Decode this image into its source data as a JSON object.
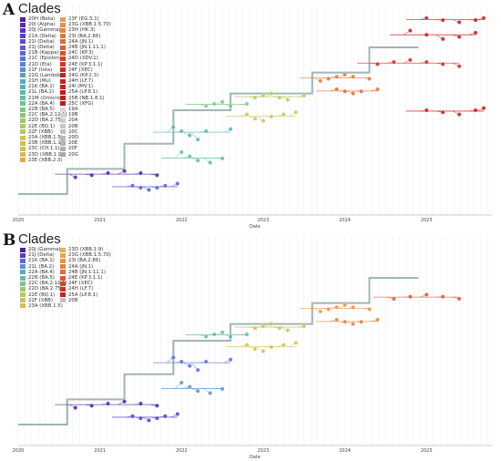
{
  "chart_data": [
    {
      "type": "scatter",
      "panel_letter": "A",
      "legend_title": "Clades",
      "xlabel": "Date",
      "ylabel": "",
      "x_ticks": [
        "2020",
        "2021",
        "2022",
        "2023",
        "2024",
        "2025"
      ],
      "xlim": [
        2020.0,
        2025.8
      ],
      "grid": true,
      "legend_placement": "top-left",
      "legend_columns": 2,
      "legend": [
        {
          "name": "20H (Beta)",
          "color": "#4b1fa3"
        },
        {
          "name": "20I (Alpha)",
          "color": "#5427b3"
        },
        {
          "name": "20J (Gamma)",
          "color": "#5a30c0"
        },
        {
          "name": "21A (Delta)",
          "color": "#5e3bcb"
        },
        {
          "name": "21I (Delta)",
          "color": "#5f48d3"
        },
        {
          "name": "21J (Delta)",
          "color": "#5d58d8"
        },
        {
          "name": "21B (Kappa)",
          "color": "#5968db"
        },
        {
          "name": "21C (Epsilon)",
          "color": "#5777dc"
        },
        {
          "name": "21D (Eta)",
          "color": "#5586da"
        },
        {
          "name": "21F (Iota)",
          "color": "#5393d5"
        },
        {
          "name": "21G (Lambda)",
          "color": "#539fce"
        },
        {
          "name": "21H (Mu)",
          "color": "#55a9c4"
        },
        {
          "name": "21K (BA.1)",
          "color": "#59b2b8"
        },
        {
          "name": "21L (BA.2)",
          "color": "#5fb9ab"
        },
        {
          "name": "21M (Omicron)",
          "color": "#67be9e"
        },
        {
          "name": "22A (BA.4)",
          "color": "#72c290"
        },
        {
          "name": "22B (BA.5)",
          "color": "#7fc583"
        },
        {
          "name": "22C (BA.2.12.1)",
          "color": "#8cc777"
        },
        {
          "name": "22D (BA.2.75)",
          "color": "#9bc86c"
        },
        {
          "name": "22E (BQ.1)",
          "color": "#aac863"
        },
        {
          "name": "22F (XBB)",
          "color": "#b8c75c"
        },
        {
          "name": "23A (XBB.1.5)",
          "color": "#c5c557"
        },
        {
          "name": "23B (XBB.1.16)",
          "color": "#d0c154"
        },
        {
          "name": "23C (CH.1.1)",
          "color": "#dabc51"
        },
        {
          "name": "23D (XBB.1.9)",
          "color": "#e1b54f"
        },
        {
          "name": "23E (XBB.2.3)",
          "color": "#e5ab4c"
        },
        {
          "name": "23F (EG.5.1)",
          "color": "#e79f48"
        },
        {
          "name": "23G (XBB.1.5.70)",
          "color": "#e79244"
        },
        {
          "name": "23H (HK.3)",
          "color": "#e6843f"
        },
        {
          "name": "23I (BA.2.86)",
          "color": "#e4763a"
        },
        {
          "name": "24A (JN.1)",
          "color": "#e26835"
        },
        {
          "name": "24B (JN.1.11.1)",
          "color": "#df5a30"
        },
        {
          "name": "24C (KP.3)",
          "color": "#dc4c2b"
        },
        {
          "name": "24D (XDV.1)",
          "color": "#d93f28"
        },
        {
          "name": "24E (KP.3.1.1)",
          "color": "#d63325"
        },
        {
          "name": "24F (XEC)",
          "color": "#d42822"
        },
        {
          "name": "24G (KP.2.3)",
          "color": "#d22020"
        },
        {
          "name": "24H (LF.7)",
          "color": "#d01c1e"
        },
        {
          "name": "24I (MV.1)",
          "color": "#cf1a1c"
        },
        {
          "name": "25A (LP.8.1)",
          "color": "#cd1819"
        },
        {
          "name": "25B (NB.1.8.1)",
          "color": "#cc1717"
        },
        {
          "name": "25C (XFG)",
          "color": "#ca1615"
        },
        {
          "name": "19A",
          "color": "#d8d8d8"
        },
        {
          "name": "19B",
          "color": "#d2d2d2"
        },
        {
          "name": "20A",
          "color": "#cccccc"
        },
        {
          "name": "20B",
          "color": "#c6c6c6"
        },
        {
          "name": "20C",
          "color": "#c0c0c0"
        },
        {
          "name": "20D",
          "color": "#bababa"
        },
        {
          "name": "20E",
          "color": "#b4b4b4"
        },
        {
          "name": "20F",
          "color": "#aeaeae"
        },
        {
          "name": "20G",
          "color": "#a8a8a8"
        }
      ],
      "series": [
        {
          "name": "20H (Beta)",
          "x": [
            2020.7,
            2020.9,
            2021.1,
            2021.3,
            2021.5,
            2021.7
          ],
          "y": [
            0.82,
            0.81,
            0.8,
            0.79,
            0.8,
            0.81
          ]
        },
        {
          "name": "21J (Delta)",
          "x": [
            2021.4,
            2021.5,
            2021.6,
            2021.7,
            2021.8,
            2021.95
          ],
          "y": [
            0.86,
            0.87,
            0.88,
            0.87,
            0.86,
            0.85
          ]
        },
        {
          "name": "21K (BA.1)",
          "x": [
            2021.9,
            2022.0,
            2022.1,
            2022.2,
            2022.3,
            2022.6
          ],
          "y": [
            0.58,
            0.6,
            0.62,
            0.64,
            0.6,
            0.59
          ]
        },
        {
          "name": "21L (BA.2)",
          "x": [
            2022.0,
            2022.1,
            2022.2,
            2022.35,
            2022.5
          ],
          "y": [
            0.7,
            0.72,
            0.74,
            0.75,
            0.73
          ]
        },
        {
          "name": "22B (BA.5)",
          "x": [
            2022.3,
            2022.4,
            2022.5,
            2022.6,
            2022.8
          ],
          "y": [
            0.48,
            0.47,
            0.46,
            0.48,
            0.47
          ]
        },
        {
          "name": "22F (XBB)",
          "x": [
            2022.9,
            2023.0,
            2023.1,
            2023.2,
            2023.3,
            2023.5
          ],
          "y": [
            0.44,
            0.43,
            0.42,
            0.44,
            0.45,
            0.43
          ]
        },
        {
          "name": "23A (XBB.1.5)",
          "x": [
            2022.8,
            2022.9,
            2023.0,
            2023.1,
            2023.25,
            2023.4
          ],
          "y": [
            0.52,
            0.54,
            0.55,
            0.53,
            0.52,
            0.51
          ]
        },
        {
          "name": "23I (BA.2.86)",
          "x": [
            2023.7,
            2023.8,
            2023.9,
            2024.0,
            2024.1,
            2024.3
          ],
          "y": [
            0.36,
            0.35,
            0.34,
            0.33,
            0.34,
            0.35
          ]
        },
        {
          "name": "24A (JN.1)",
          "x": [
            2023.9,
            2024.0,
            2024.1,
            2024.2,
            2024.4
          ],
          "y": [
            0.4,
            0.41,
            0.42,
            0.41,
            0.4
          ]
        },
        {
          "name": "24F (XEC)",
          "x": [
            2024.4,
            2024.6,
            2024.8,
            2025.0,
            2025.2,
            2025.4
          ],
          "y": [
            0.28,
            0.27,
            0.26,
            0.27,
            0.28,
            0.29
          ]
        },
        {
          "name": "25A (LP.8.1)",
          "x": [
            2024.8,
            2025.0,
            2025.2,
            2025.4,
            2025.6
          ],
          "y": [
            0.12,
            0.14,
            0.16,
            0.15,
            0.13
          ]
        },
        {
          "name": "25B (NB.1.8.1)",
          "x": [
            2025.0,
            2025.2,
            2025.4,
            2025.6,
            2025.7
          ],
          "y": [
            0.06,
            0.07,
            0.08,
            0.07,
            0.06
          ]
        },
        {
          "name": "25C (XFG)",
          "x": [
            2025.0,
            2025.2,
            2025.4,
            2025.6,
            2025.7
          ],
          "y": [
            0.5,
            0.51,
            0.52,
            0.5,
            0.49
          ]
        }
      ]
    },
    {
      "type": "scatter",
      "panel_letter": "B",
      "legend_title": "Clades",
      "xlabel": "Date",
      "ylabel": "",
      "x_ticks": [
        "2020",
        "2021",
        "2022",
        "2023",
        "2024",
        "2025"
      ],
      "xlim": [
        2020.0,
        2025.8
      ],
      "grid": true,
      "legend_placement": "top-left",
      "legend_columns": 2,
      "legend": [
        {
          "name": "20J (Gamma)",
          "color": "#4b1fa3"
        },
        {
          "name": "21J (Delta)",
          "color": "#5a3ac8"
        },
        {
          "name": "21K (BA.1)",
          "color": "#5769d8"
        },
        {
          "name": "21L (BA.2)",
          "color": "#5590d4"
        },
        {
          "name": "22A (BA.4)",
          "color": "#59abc3"
        },
        {
          "name": "22B (BA.5)",
          "color": "#66bca5"
        },
        {
          "name": "22C (BA.2.12.1)",
          "color": "#7fc583"
        },
        {
          "name": "22D (BA.2.75)",
          "color": "#9bc86c"
        },
        {
          "name": "22E (BQ.1)",
          "color": "#b0c85e"
        },
        {
          "name": "22F (XBB)",
          "color": "#c3c656"
        },
        {
          "name": "23A (XBB.1.5)",
          "color": "#d3c053"
        },
        {
          "name": "23D (XBB.1.9)",
          "color": "#e0b54f"
        },
        {
          "name": "23G (XBB.1.5.70)",
          "color": "#e6a64a"
        },
        {
          "name": "23I (BA.2.86)",
          "color": "#e79444"
        },
        {
          "name": "24A (JN.1)",
          "color": "#e57f3d"
        },
        {
          "name": "24B (JN.1.11.1)",
          "color": "#e06b36"
        },
        {
          "name": "24E (KP.3.1.1)",
          "color": "#da5630"
        },
        {
          "name": "24F (XEC)",
          "color": "#d4432a"
        },
        {
          "name": "24H (LF.7)",
          "color": "#cf3026"
        },
        {
          "name": "25A (LP.8.1)",
          "color": "#ca1f20"
        },
        {
          "name": "20B",
          "color": "#c0c0c0"
        }
      ],
      "series": [
        {
          "name": "20J (Gamma)",
          "x": [
            2020.7,
            2020.9,
            2021.1,
            2021.3,
            2021.5,
            2021.7
          ],
          "y": [
            0.82,
            0.81,
            0.8,
            0.79,
            0.8,
            0.81
          ]
        },
        {
          "name": "21J (Delta)",
          "x": [
            2021.4,
            2021.5,
            2021.6,
            2021.7,
            2021.8,
            2021.95
          ],
          "y": [
            0.86,
            0.87,
            0.88,
            0.87,
            0.86,
            0.85
          ]
        },
        {
          "name": "21K (BA.1)",
          "x": [
            2021.9,
            2022.0,
            2022.1,
            2022.2,
            2022.3,
            2022.6
          ],
          "y": [
            0.58,
            0.6,
            0.62,
            0.64,
            0.6,
            0.59
          ]
        },
        {
          "name": "21L (BA.2)",
          "x": [
            2022.0,
            2022.1,
            2022.2,
            2022.35,
            2022.5
          ],
          "y": [
            0.7,
            0.72,
            0.74,
            0.75,
            0.73
          ]
        },
        {
          "name": "22B (BA.5)",
          "x": [
            2022.3,
            2022.4,
            2022.5,
            2022.6,
            2022.8
          ],
          "y": [
            0.48,
            0.47,
            0.46,
            0.48,
            0.47
          ]
        },
        {
          "name": "22F (XBB)",
          "x": [
            2022.9,
            2023.0,
            2023.1,
            2023.2,
            2023.3,
            2023.5
          ],
          "y": [
            0.44,
            0.43,
            0.42,
            0.44,
            0.45,
            0.43
          ]
        },
        {
          "name": "23A (XBB.1.5)",
          "x": [
            2022.8,
            2022.9,
            2023.0,
            2023.1,
            2023.25,
            2023.4
          ],
          "y": [
            0.52,
            0.54,
            0.55,
            0.53,
            0.52,
            0.51
          ]
        },
        {
          "name": "23I (BA.2.86)",
          "x": [
            2023.7,
            2023.8,
            2023.9,
            2024.0,
            2024.1,
            2024.3
          ],
          "y": [
            0.36,
            0.35,
            0.34,
            0.33,
            0.34,
            0.35
          ]
        },
        {
          "name": "24A (JN.1)",
          "x": [
            2023.9,
            2024.0,
            2024.1,
            2024.2,
            2024.4
          ],
          "y": [
            0.4,
            0.41,
            0.42,
            0.41,
            0.4
          ]
        },
        {
          "name": "24E (KP.3.1.1)",
          "x": [
            2024.6,
            2024.8,
            2025.0,
            2025.2,
            2025.4
          ],
          "y": [
            0.3,
            0.29,
            0.28,
            0.29,
            0.3
          ]
        }
      ]
    }
  ]
}
